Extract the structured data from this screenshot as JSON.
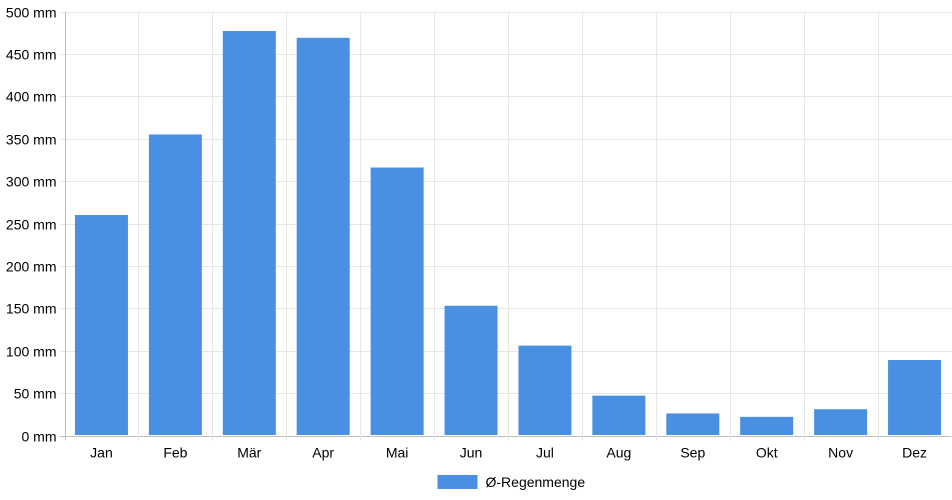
{
  "chart_data": {
    "type": "bar",
    "categories": [
      "Jan",
      "Feb",
      "Mär",
      "Apr",
      "Mai",
      "Jun",
      "Jul",
      "Aug",
      "Sep",
      "Okt",
      "Nov",
      "Dez"
    ],
    "series": [
      {
        "name": "Ø-Regenmenge",
        "color": "#4a90e2",
        "values": [
          260,
          355,
          477,
          469,
          316,
          153,
          106,
          47,
          26,
          22,
          31,
          89
        ]
      }
    ],
    "y_ticks": [
      "0 mm",
      "50 mm",
      "100 mm",
      "150 mm",
      "200 mm",
      "250 mm",
      "300 mm",
      "350 mm",
      "400 mm",
      "450 mm",
      "500 mm"
    ],
    "ylim": [
      0,
      500
    ],
    "y_step": 50,
    "grid": true,
    "legend_position": "bottom-center"
  }
}
